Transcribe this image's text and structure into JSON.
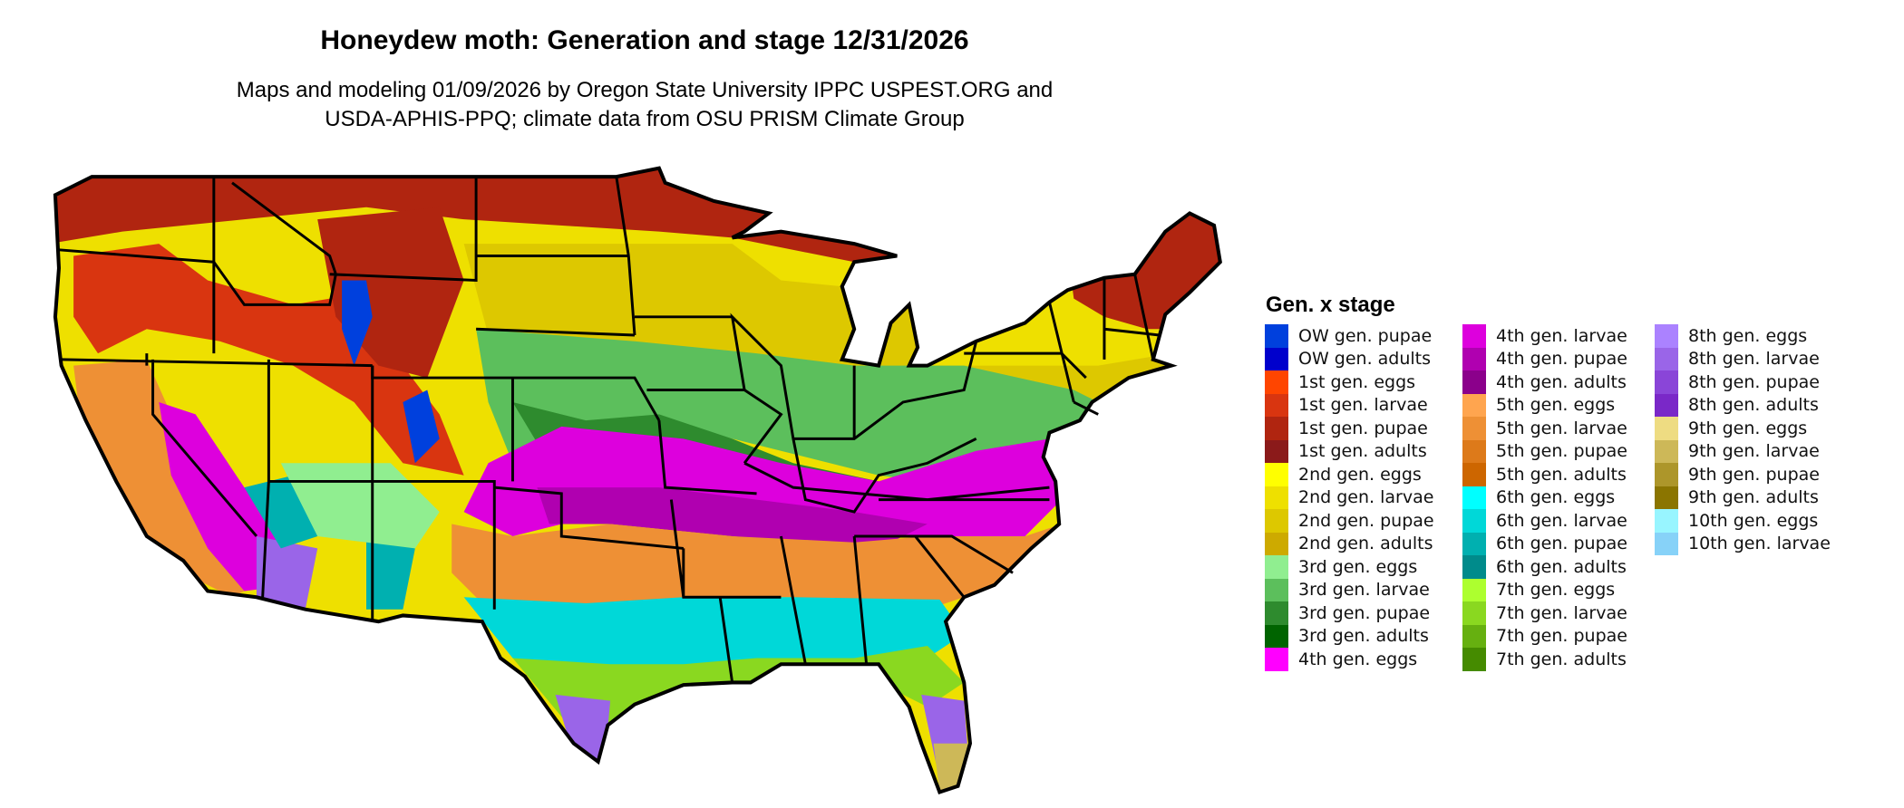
{
  "title": "Honeydew moth: Generation and stage 12/31/2026",
  "subtitle_lines": [
    "Maps and modeling 01/09/2026 by Oregon State University IPPC USPEST.ORG and",
    "USDA-APHIS-PPQ; climate data from OSU PRISM Climate Group"
  ],
  "legend": {
    "title": "Gen. x stage",
    "columns": [
      [
        {
          "label": "OW gen. pupae",
          "color": "#0040DD"
        },
        {
          "label": "OW gen. adults",
          "color": "#0000CC"
        },
        {
          "label": "1st gen. eggs",
          "color": "#FF4500"
        },
        {
          "label": "1st gen. larvae",
          "color": "#D93510"
        },
        {
          "label": "1st gen. pupae",
          "color": "#B02510"
        },
        {
          "label": "1st gen. adults",
          "color": "#8B1A1A"
        },
        {
          "label": "2nd gen. eggs",
          "color": "#FFFF00"
        },
        {
          "label": "2nd gen. larvae",
          "color": "#EEE000"
        },
        {
          "label": "2nd gen. pupae",
          "color": "#DDC800"
        },
        {
          "label": "2nd gen. adults",
          "color": "#CDAA00"
        },
        {
          "label": "3rd gen. eggs",
          "color": "#90EE90"
        },
        {
          "label": "3rd gen. larvae",
          "color": "#5CBF5C"
        },
        {
          "label": "3rd gen. pupae",
          "color": "#2E8B2E"
        },
        {
          "label": "3rd gen. adults",
          "color": "#006400"
        },
        {
          "label": "4th gen. eggs",
          "color": "#FF00FF"
        }
      ],
      [
        {
          "label": "4th gen. larvae",
          "color": "#DD00DD"
        },
        {
          "label": "4th gen. pupae",
          "color": "#B000B0"
        },
        {
          "label": "4th gen. adults",
          "color": "#8B008B"
        },
        {
          "label": "5th gen. eggs",
          "color": "#FFA54F"
        },
        {
          "label": "5th gen. larvae",
          "color": "#EE9035"
        },
        {
          "label": "5th gen. pupae",
          "color": "#DD7A1A"
        },
        {
          "label": "5th gen. adults",
          "color": "#CD6600"
        },
        {
          "label": "6th gen. eggs",
          "color": "#00FFFF"
        },
        {
          "label": "6th gen. larvae",
          "color": "#00D8D8"
        },
        {
          "label": "6th gen. pupae",
          "color": "#00B0B0"
        },
        {
          "label": "6th gen. adults",
          "color": "#008B8B"
        },
        {
          "label": "7th gen. eggs",
          "color": "#ADFF2F"
        },
        {
          "label": "7th gen. larvae",
          "color": "#8AD820"
        },
        {
          "label": "7th gen. pupae",
          "color": "#66B010"
        },
        {
          "label": "7th gen. adults",
          "color": "#458B00"
        }
      ],
      [
        {
          "label": "8th gen. eggs",
          "color": "#AB82FF"
        },
        {
          "label": "8th gen. larvae",
          "color": "#9A65E8"
        },
        {
          "label": "8th gen. pupae",
          "color": "#8A45D8"
        },
        {
          "label": "8th gen. adults",
          "color": "#7A28C8"
        },
        {
          "label": "9th gen. eggs",
          "color": "#EEDC82"
        },
        {
          "label": "9th gen. larvae",
          "color": "#CDB858"
        },
        {
          "label": "9th gen. pupae",
          "color": "#AD962A"
        },
        {
          "label": "9th gen. adults",
          "color": "#8B7500"
        },
        {
          "label": "10th gen. eggs",
          "color": "#98F5FF"
        },
        {
          "label": "10th gen. larvae",
          "color": "#87D2F8"
        }
      ]
    ]
  }
}
